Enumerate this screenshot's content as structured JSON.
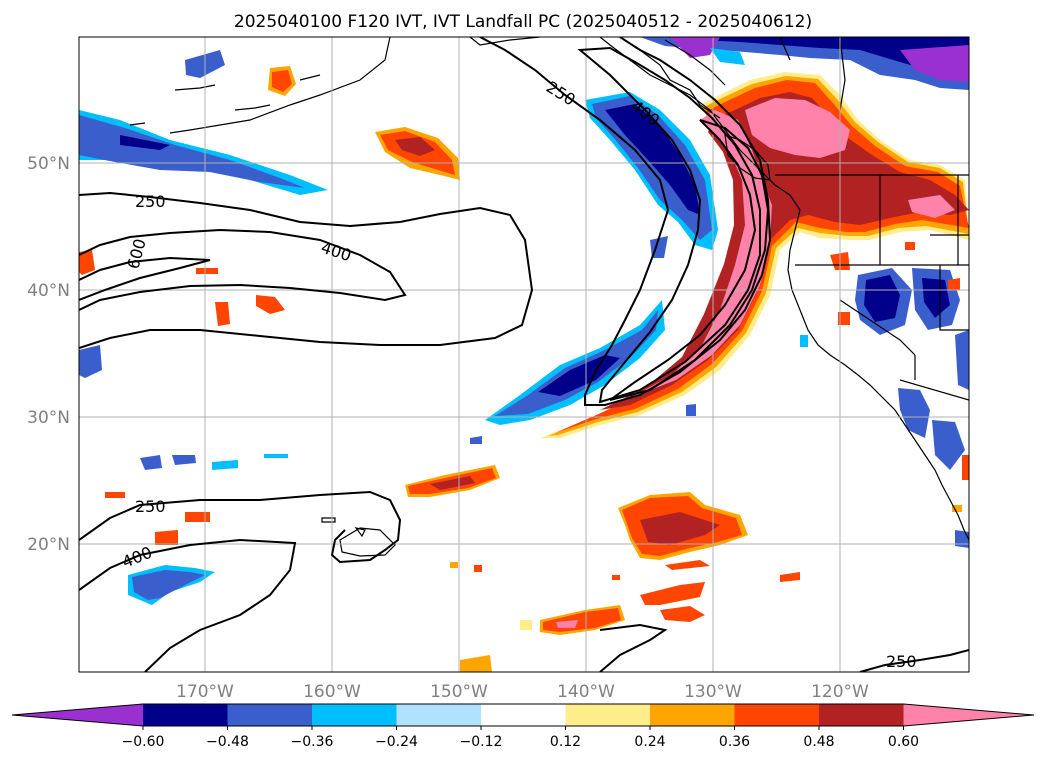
{
  "title": "2025040100 F120 IVT, IVT Landfall PC (2025040512 - 2025040612)",
  "lon_labels": [
    "170°W",
    "160°W",
    "150°W",
    "140°W",
    "130°W",
    "120°W"
  ],
  "lat_labels": [
    "50°N",
    "40°N",
    "30°N",
    "20°N"
  ],
  "contour_labels": [
    "250",
    "400",
    "250",
    "600",
    "400",
    "250",
    "400",
    "250"
  ],
  "colorbar": {
    "tick_labels": [
      "−0.60",
      "−0.48",
      "−0.36",
      "−0.24",
      "−0.12",
      "0.12",
      "0.24",
      "0.36",
      "0.48",
      "0.60"
    ],
    "colors": [
      "#9b30d0",
      "#00008b",
      "#3a5fcd",
      "#00bfff",
      "#b0e2ff",
      "#ffffff",
      "#ffec8b",
      "#ffa500",
      "#ff4500",
      "#b22222",
      "#ff82ab"
    ]
  },
  "colors": {
    "contour": "#000000",
    "coast": "#000000",
    "grid": "#b0b0b0",
    "axis_label": "#808080"
  }
}
